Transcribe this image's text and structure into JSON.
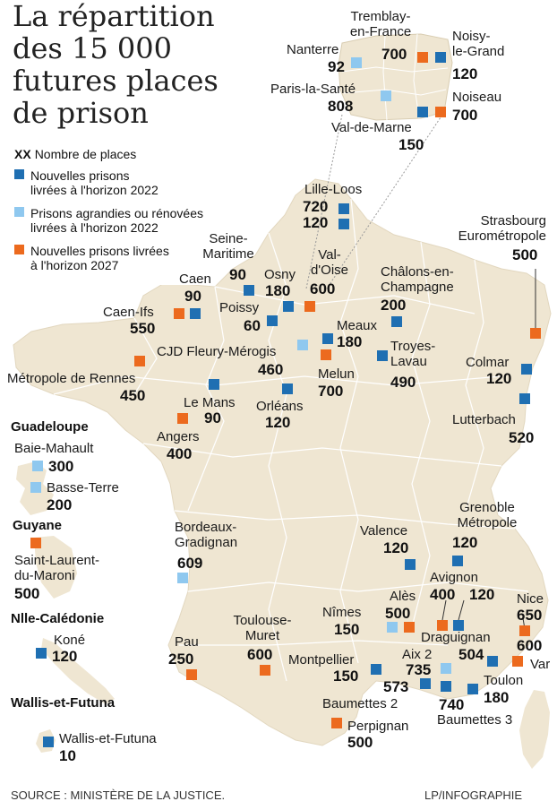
{
  "title": {
    "line1": "La répartition",
    "line2": "des 15 000",
    "line3": "futures places",
    "line4": "de prison"
  },
  "legend": {
    "xx": "XX",
    "count_label": "Nombre de places",
    "blue_l1": "Nouvelles prisons",
    "blue_l2": "livrées à l'horizon 2022",
    "light_l1": "Prisons agrandies ou rénovées",
    "light_l2": "livrées à l'horizon 2022",
    "orange_l1": "Nouvelles prisons livrées",
    "orange_l2": "à l'horizon 2027"
  },
  "colors": {
    "blue": "#1f6fb2",
    "light_blue": "#8fc8ef",
    "orange": "#ec6a1e",
    "land": "#efe6d2",
    "border": "#ffffff"
  },
  "idf": {
    "tremblay_l1": "Tremblay-",
    "tremblay_l2": "en-France",
    "tremblay_n": "700",
    "noisy_l1": "Noisy-",
    "noisy_l2": "le-Grand",
    "noisy_n": "120",
    "nanterre": "Nanterre",
    "nanterre_n": "92",
    "sante": "Paris-la-Santé",
    "sante_n": "808",
    "noiseau": "Noiseau",
    "noiseau_n": "700",
    "vdm": "Val-de-Marne",
    "vdm_n": "150"
  },
  "places": {
    "lille": "Lille-Loos",
    "lille_n1": "720",
    "lille_n2": "120",
    "strasbourg_l1": "Strasbourg",
    "strasbourg_l2": "Eurométropole",
    "strasbourg_n": "500",
    "seine_l1": "Seine-",
    "seine_l2": "Maritime",
    "seine_n": "90",
    "caen": "Caen",
    "caen_n": "90",
    "osny": "Osny",
    "osny_n": "180",
    "vdo_l1": "Val-",
    "vdo_l2": "d'Oise",
    "vdo_n": "600",
    "chalons_l1": "Châlons-en-",
    "chalons_l2": "Champagne",
    "chalons_n": "200",
    "caenifs": "Caen-Ifs",
    "caenifs_n": "550",
    "poissy": "Poissy",
    "poissy_n": "60",
    "meaux": "Meaux",
    "meaux_n": "180",
    "fleury": "CJD Fleury-Mérogis",
    "fleury_n": "460",
    "troyes_l1": "Troyes-",
    "troyes_l2": "Lavau",
    "troyes_n": "490",
    "colmar": "Colmar",
    "colmar_n": "120",
    "rennes": "Métropole de Rennes",
    "rennes_n": "450",
    "melun": "Melun",
    "melun_n": "700",
    "lemans": "Le Mans",
    "lemans_n": "90",
    "orleans": "Orléans",
    "orleans_n": "120",
    "lutterbach": "Lutterbach",
    "lutterbach_n": "520",
    "angers": "Angers",
    "angers_n": "400",
    "bordeaux_l1": "Bordeaux-",
    "bordeaux_l2": "Gradignan",
    "bordeaux_n": "609",
    "valence": "Valence",
    "valence_n": "120",
    "grenoble_l1": "Grenoble",
    "grenoble_l2": "Métropole",
    "grenoble_n": "120",
    "avignon": "Avignon",
    "avignon_n1": "400",
    "avignon_n2": "120",
    "nice": "Nice",
    "nice_n": "650",
    "nimes": "Nîmes",
    "nimes_n": "150",
    "ales": "Alès",
    "ales_n": "500",
    "draguignan": "Draguignan",
    "n504": "504",
    "var_n": "600",
    "var": "Var",
    "pau": "Pau",
    "pau_n": "250",
    "toulouse_l1": "Toulouse-",
    "toulouse_l2": "Muret",
    "toulouse_n": "600",
    "montpellier": "Montpellier",
    "montpellier_n": "150",
    "aix2": "Aix 2",
    "aix2_n": "735",
    "n573": "573",
    "n740": "740",
    "toulon": "Toulon",
    "toulon_n": "180",
    "baumettes2": "Baumettes 2",
    "baumettes3": "Baumettes 3",
    "perpignan": "Perpignan",
    "perpignan_n": "500"
  },
  "overseas": {
    "guadeloupe": "Guadeloupe",
    "baie": "Baie-Mahault",
    "baie_n": "300",
    "basse": "Basse-Terre",
    "basse_n": "200",
    "guyane": "Guyane",
    "stlaurent_l1": "Saint-Laurent-",
    "stlaurent_l2": "du-Maroni",
    "stlaurent_n": "500",
    "caledonie": "Nlle-Calédonie",
    "kone": "Koné",
    "kone_n": "120",
    "wallis_title": "Wallis-et-Futuna",
    "wallis": "Wallis-et-Futuna",
    "wallis_n": "10"
  },
  "footer": {
    "source": "SOURCE : MINISTÈRE DE LA JUSTICE.",
    "credit": "LP/INFOGRAPHIE"
  }
}
